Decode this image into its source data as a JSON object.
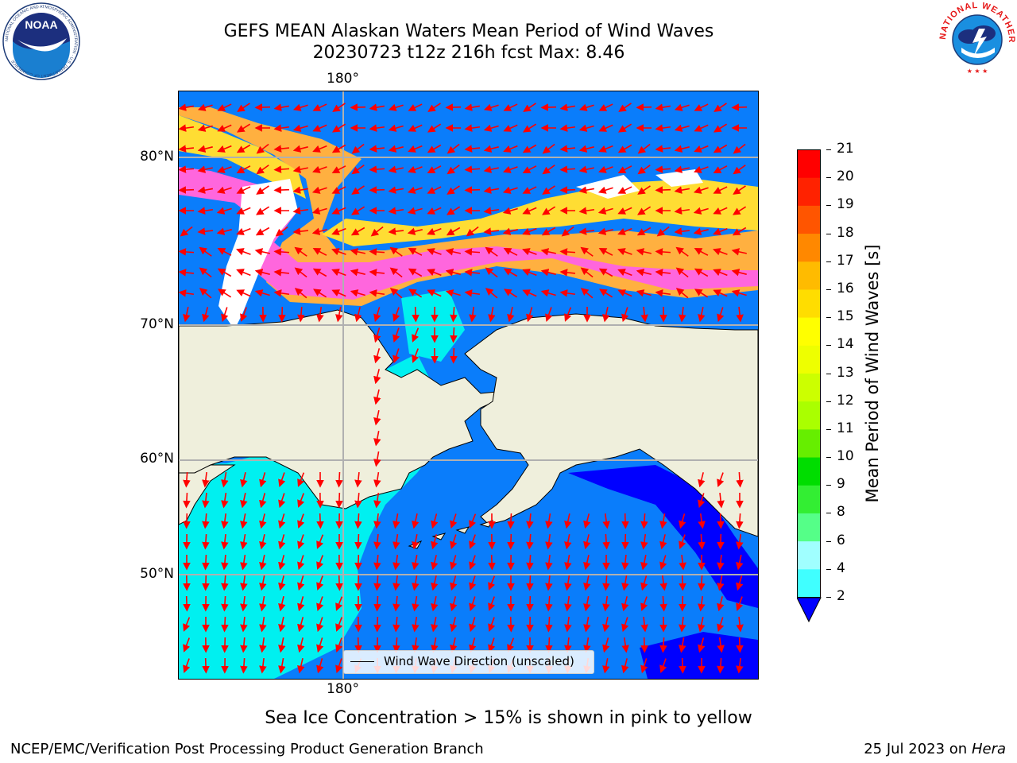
{
  "header": {
    "title_line1": "GEFS MEAN Alaskan Waters Mean Period of Wind Waves",
    "title_line2": "20230723 t12z 216h fcst   Max: 8.46"
  },
  "logos": {
    "noaa_text": "NOAA",
    "noaa_ring_text": "NATIONAL OCEANIC AND ATMOSPHERIC ADMINISTRATION · U.S. DEPARTMENT OF COMMERCE",
    "nws_ring_text": "NATIONAL WEATHER SERVICE"
  },
  "map": {
    "lon_labels": {
      "top": "180°",
      "bottom": "180°"
    },
    "lat_labels": [
      "80°N",
      "70°N",
      "60°N",
      "50°N"
    ],
    "legend_label": "Wind Wave Direction (unscaled)",
    "colors": {
      "land": "#efefdc",
      "sea_low": "#0a7dfb",
      "sea_mid": "#00f0f0",
      "sea_deep": "#0000ff",
      "ice_pink": "#ff66dd",
      "ice_orange": "#ffb040",
      "ice_yellow": "#ffdd33",
      "arrow": "#ff0000",
      "grid": "#b0b0b0"
    }
  },
  "colorbar": {
    "label": "Mean Period of Wind Waves [s]",
    "ticks": [
      "21",
      "20",
      "19",
      "18",
      "17",
      "16",
      "15",
      "14",
      "13",
      "12",
      "11",
      "10",
      "9",
      "8",
      "6",
      "4",
      "2"
    ],
    "colors": [
      "#0a7dfb",
      "#00ffff",
      "#40ffff",
      "#a0ffff",
      "#55ff88",
      "#33ee33",
      "#00dd00",
      "#66ee00",
      "#aaff00",
      "#ccff00",
      "#eeff00",
      "#ffff00",
      "#ffdd00",
      "#ffbb00",
      "#ff8800",
      "#ff5500",
      "#ff2200",
      "#ff0000"
    ],
    "under_color": "#0000ff"
  },
  "caption": "Sea Ice Concentration > 15% is shown in pink to yellow",
  "footer": {
    "left": "NCEP/EMC/Verification Post Processing Product Generation Branch",
    "right_prefix": "25 Jul 2023 on ",
    "right_host": "Hera"
  }
}
